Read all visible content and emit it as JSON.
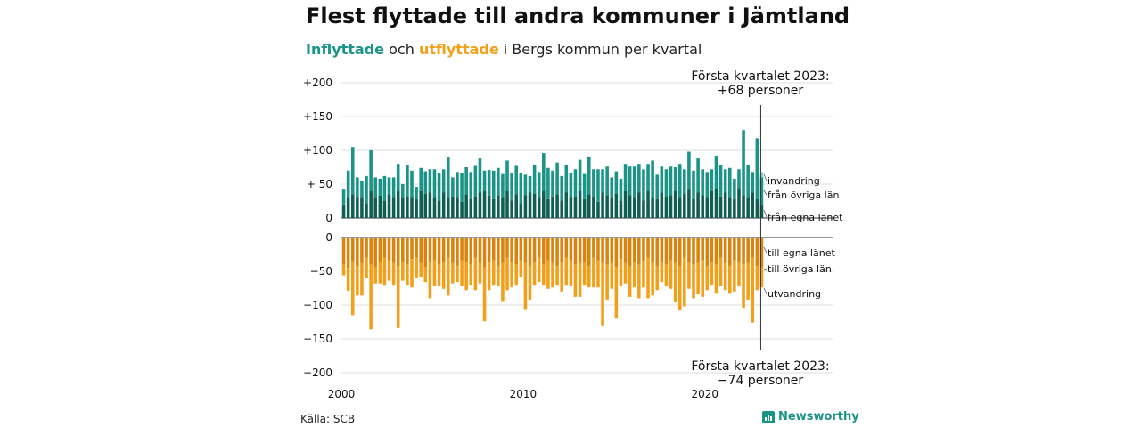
{
  "header": {
    "title": "Flest flyttade till andra kommuner i Jämtland",
    "subtitle_in": "Inflyttade",
    "subtitle_mid": " och ",
    "subtitle_out": "utflyttade",
    "subtitle_rest": " i Bergs kommun per kvartal"
  },
  "footer": {
    "source": "Källa: SCB",
    "brand": "Newsworthy"
  },
  "colors": {
    "in_own": "#0f5e52",
    "in_other": "#1a9487",
    "in_immig": "#86cfc4",
    "out_own": "#d9840f",
    "out_other": "#f2a01a",
    "out_emig": "#f8cf86",
    "grid": "#dddddd",
    "axis": "#333333"
  },
  "chart_data": {
    "type": "bar",
    "stacked": true,
    "x_start": "2000 Q1",
    "x_end": "2023 Q1",
    "x_ticks": [
      "2000",
      "2010",
      "2020"
    ],
    "y_ticks_upper": [
      "+200",
      "+150",
      "+100",
      "+ 50",
      "0"
    ],
    "y_ticks_lower": [
      "0",
      "−50",
      "−100",
      "−150",
      "−200"
    ],
    "ylim_upper": [
      0,
      200
    ],
    "ylim_lower": [
      -200,
      0
    ],
    "series_labels": {
      "in_immig": "invandring",
      "in_other": "från övriga län",
      "in_own": "från egna länet",
      "out_own": "till egna länet",
      "out_other": "till övriga län",
      "out_emig": "utvandring"
    },
    "annotation_top": [
      "Första kvartalet 2023:",
      "+68 personer"
    ],
    "annotation_bottom": [
      "Första kvartalet 2023:",
      "−74 personer"
    ],
    "in_own": [
      20,
      30,
      35,
      30,
      30,
      22,
      40,
      30,
      33,
      25,
      35,
      30,
      40,
      30,
      32,
      30,
      28,
      40,
      36,
      38,
      30,
      26,
      38,
      30,
      32,
      30,
      24,
      35,
      28,
      32,
      38,
      40,
      33,
      28,
      34,
      30,
      40,
      26,
      35,
      22,
      34,
      38,
      36,
      30,
      40,
      28,
      32,
      35,
      26,
      38,
      30,
      32,
      40,
      28,
      35,
      32,
      24,
      38,
      34,
      30,
      36,
      26,
      40,
      34,
      30,
      38,
      26,
      40,
      30,
      28,
      38,
      32,
      34,
      40,
      30,
      36,
      42,
      28,
      38,
      34,
      30,
      40,
      44,
      32,
      38,
      30,
      28,
      44,
      34,
      30,
      38,
      28,
      20
    ],
    "in_other": [
      22,
      40,
      70,
      30,
      25,
      40,
      60,
      30,
      25,
      37,
      25,
      30,
      40,
      20,
      46,
      40,
      18,
      34,
      33,
      34,
      42,
      40,
      34,
      60,
      28,
      38,
      42,
      40,
      40,
      45,
      50,
      30,
      38,
      42,
      40,
      35,
      45,
      40,
      42,
      44,
      30,
      24,
      42,
      38,
      56,
      46,
      38,
      47,
      36,
      40,
      36,
      40,
      46,
      37,
      56,
      40,
      48,
      34,
      42,
      30,
      33,
      32,
      40,
      42,
      46,
      42,
      46,
      40,
      55,
      36,
      38,
      40,
      42,
      35,
      50,
      36,
      56,
      42,
      50,
      38,
      38,
      32,
      48,
      46,
      34,
      44,
      30,
      28,
      96,
      48,
      30,
      90,
      40
    ],
    "in_immig": [
      0,
      0,
      0,
      0,
      0,
      0,
      0,
      0,
      0,
      0,
      0,
      0,
      0,
      0,
      0,
      0,
      0,
      0,
      0,
      0,
      0,
      0,
      0,
      0,
      0,
      0,
      0,
      0,
      0,
      0,
      0,
      0,
      0,
      0,
      0,
      0,
      0,
      0,
      0,
      0,
      0,
      0,
      0,
      0,
      0,
      0,
      0,
      0,
      0,
      0,
      0,
      0,
      0,
      0,
      0,
      0,
      0,
      0,
      0,
      0,
      0,
      0,
      0,
      0,
      0,
      0,
      0,
      0,
      0,
      0,
      0,
      0,
      0,
      0,
      0,
      0,
      0,
      0,
      0,
      0,
      0,
      0,
      0,
      0,
      0,
      0,
      0,
      0,
      0,
      0,
      0,
      0,
      8
    ],
    "out_own": [
      40,
      45,
      35,
      42,
      38,
      30,
      40,
      44,
      36,
      30,
      34,
      38,
      42,
      36,
      40,
      32,
      30,
      38,
      44,
      36,
      34,
      40,
      36,
      30,
      38,
      42,
      34,
      36,
      40,
      30,
      38,
      44,
      36,
      34,
      42,
      38,
      30,
      36,
      40,
      34,
      38,
      42,
      36,
      30,
      40,
      34,
      38,
      42,
      36,
      30,
      34,
      40,
      38,
      36,
      42,
      30,
      34,
      38,
      40,
      36,
      44,
      32,
      38,
      42,
      36,
      40,
      34,
      30,
      38,
      42,
      36,
      40,
      34,
      38,
      42,
      30,
      36,
      40,
      38,
      34,
      42,
      36,
      40,
      30,
      38,
      42,
      34,
      36,
      40,
      38,
      30,
      42,
      44
    ],
    "out_other": [
      16,
      34,
      80,
      44,
      48,
      30,
      96,
      24,
      32,
      40,
      30,
      32,
      92,
      28,
      30,
      42,
      30,
      20,
      22,
      54,
      38,
      32,
      40,
      56,
      30,
      24,
      38,
      42,
      30,
      48,
      30,
      80,
      42,
      36,
      30,
      56,
      48,
      38,
      30,
      24,
      68,
      50,
      34,
      36,
      30,
      42,
      36,
      28,
      44,
      40,
      38,
      48,
      50,
      34,
      32,
      44,
      40,
      92,
      52,
      40,
      76,
      40,
      30,
      46,
      38,
      50,
      40,
      60,
      48,
      36,
      30,
      32,
      42,
      58,
      66,
      72,
      40,
      50,
      46,
      54,
      36,
      34,
      42,
      42,
      40,
      40,
      46,
      36,
      64,
      54,
      96,
      36,
      30
    ],
    "out_emig": [
      0,
      0,
      0,
      0,
      0,
      0,
      0,
      0,
      0,
      0,
      0,
      0,
      0,
      0,
      0,
      0,
      0,
      0,
      0,
      0,
      0,
      0,
      0,
      0,
      0,
      0,
      0,
      0,
      0,
      0,
      0,
      0,
      0,
      0,
      0,
      0,
      0,
      0,
      0,
      0,
      0,
      0,
      0,
      0,
      0,
      0,
      0,
      0,
      0,
      0,
      0,
      0,
      0,
      0,
      0,
      0,
      0,
      0,
      0,
      0,
      0,
      0,
      0,
      0,
      0,
      0,
      0,
      0,
      0,
      0,
      0,
      0,
      0,
      0,
      0,
      0,
      0,
      0,
      0,
      0,
      0,
      0,
      0,
      0,
      0,
      0,
      0,
      0,
      0,
      0,
      0,
      0,
      0
    ]
  }
}
